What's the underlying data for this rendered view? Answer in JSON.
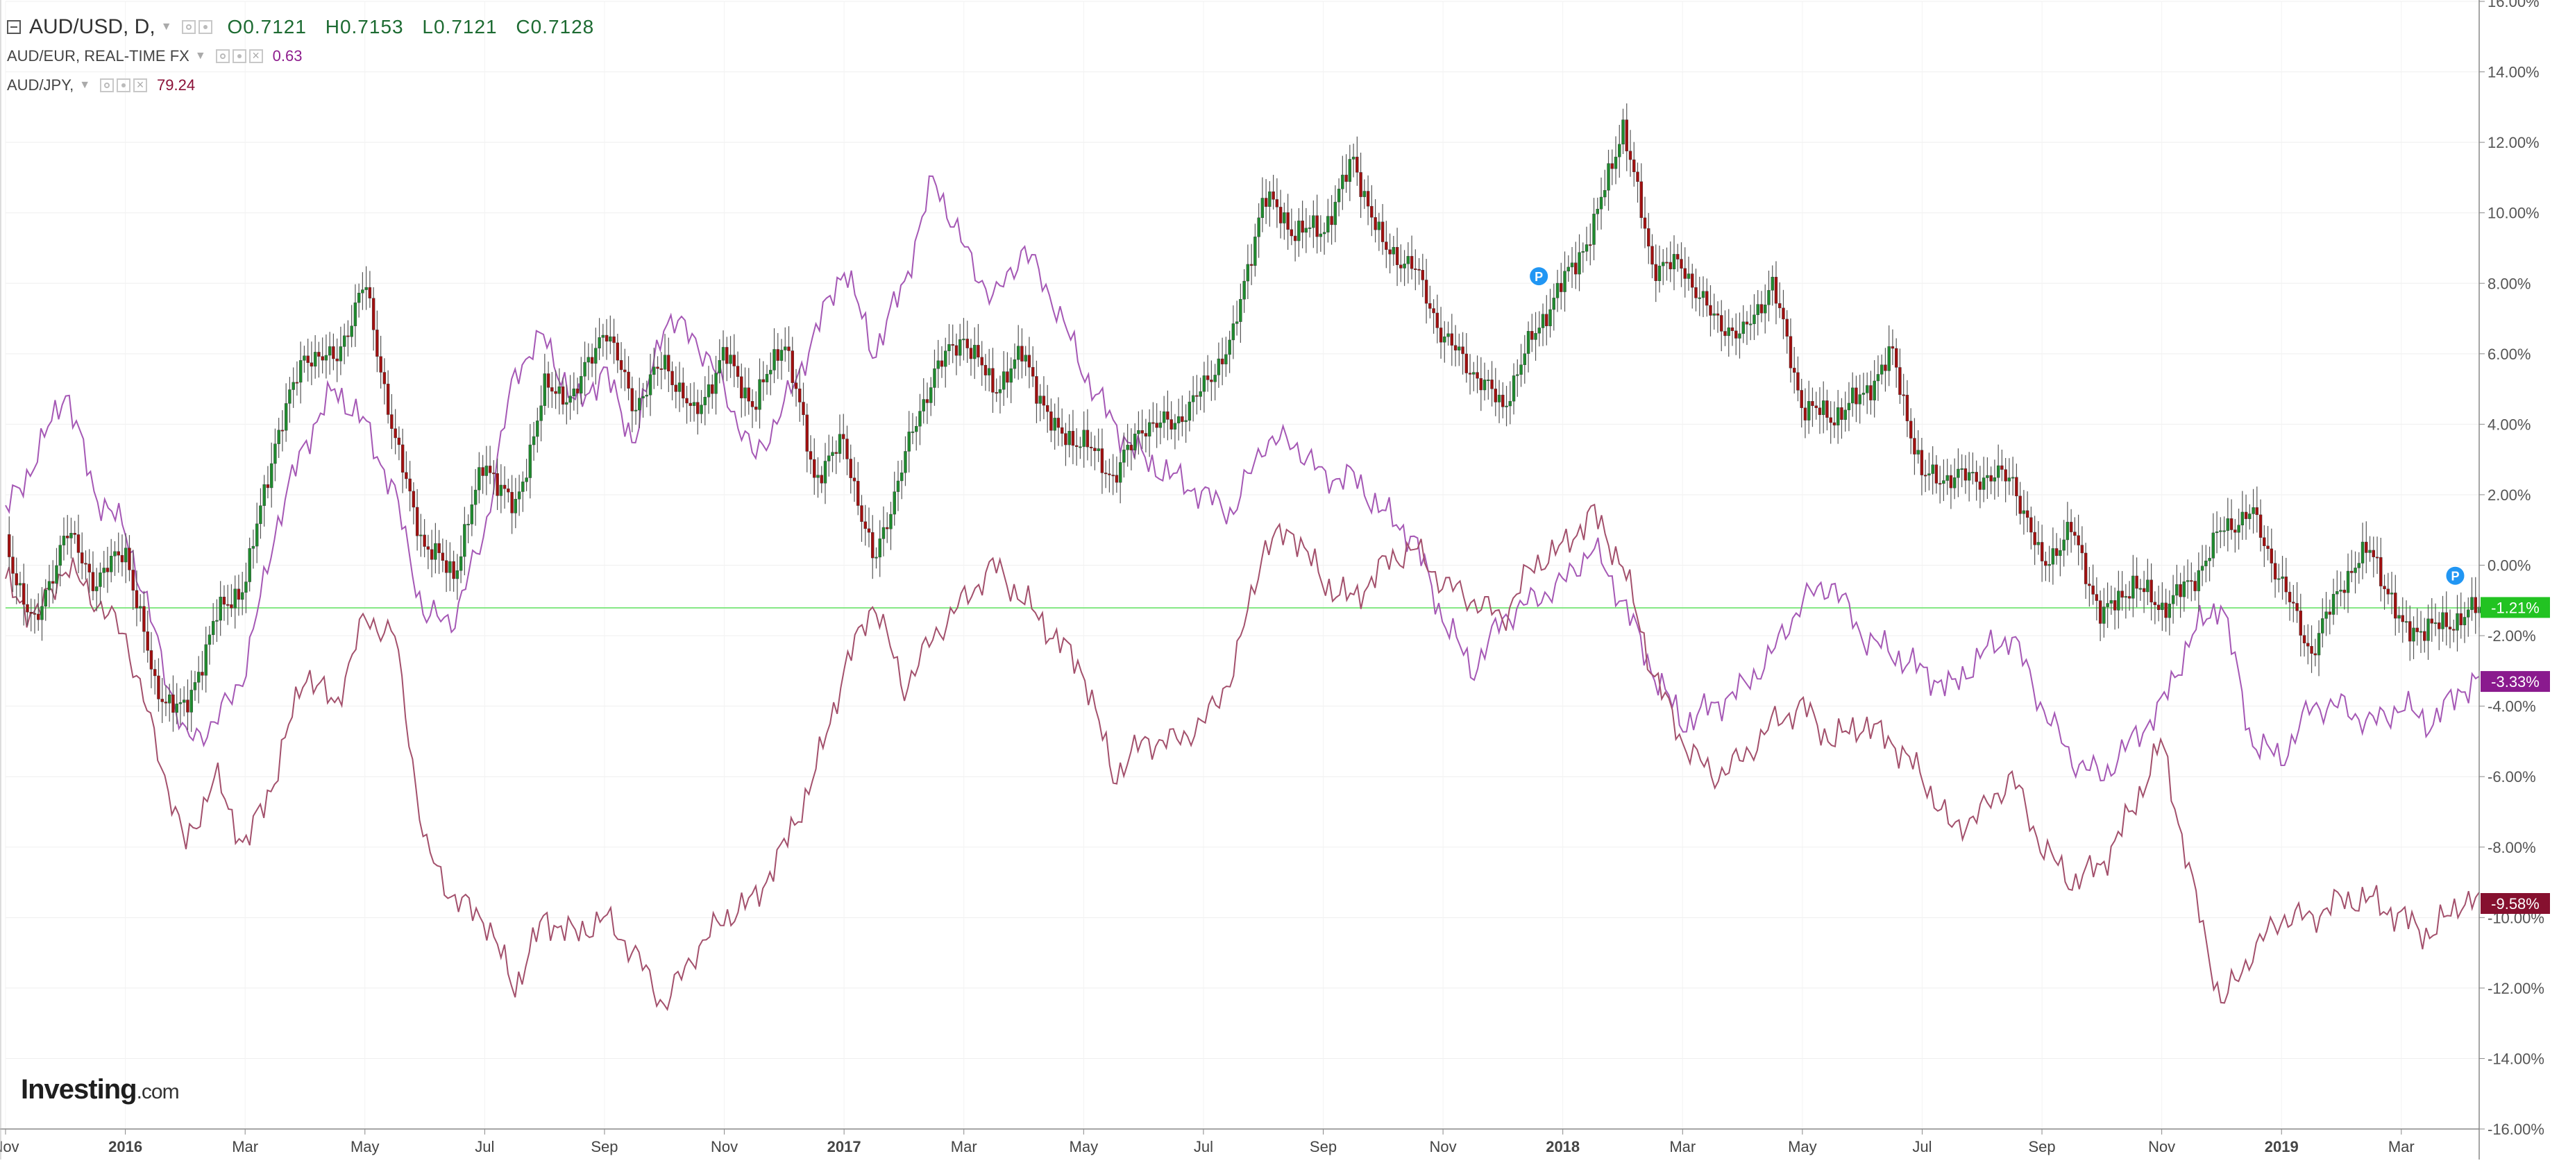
{
  "legend": {
    "main": {
      "name": "AUD/USD, D,",
      "open": "O0.7121",
      "high": "H0.7153",
      "low": "L0.7121",
      "close": "C0.7128"
    },
    "eur": {
      "name": "AUD/EUR, REAL-TIME FX",
      "value": "0.63"
    },
    "jpy": {
      "name": "AUD/JPY,",
      "value": "79.24"
    }
  },
  "logo": {
    "brand": "Investing",
    "suffix": ".com"
  },
  "colors": {
    "up": "#1f8a2e",
    "down": "#a01010",
    "wick": "#555555",
    "eur": "#a558b5",
    "jpy": "#a3506c",
    "zero_line": "#86e886",
    "usd_tag": "#22c322",
    "eur_tag": "#8a1a8e",
    "jpy_tag": "#86102f"
  },
  "chart_data": {
    "type": "line",
    "title": "",
    "xlabel": "",
    "ylabel": "",
    "x_ticks": [
      "Nov",
      "2016",
      "Mar",
      "May",
      "Jul",
      "Sep",
      "Nov",
      "2017",
      "Mar",
      "May",
      "Jul",
      "Sep",
      "Nov",
      "2018",
      "Mar",
      "May",
      "Jul",
      "Sep",
      "Nov",
      "2019",
      "Mar"
    ],
    "x_tick_bold": [
      false,
      true,
      false,
      false,
      false,
      false,
      false,
      true,
      false,
      false,
      false,
      false,
      false,
      true,
      false,
      false,
      false,
      false,
      false,
      true,
      false
    ],
    "y_ticks": [
      "16.00%",
      "14.00%",
      "12.00%",
      "10.00%",
      "8.00%",
      "6.00%",
      "4.00%",
      "2.00%",
      "0.00%",
      "-2.00%",
      "-4.00%",
      "-6.00%",
      "-8.00%",
      "-10.00%",
      "-12.00%",
      "-14.00%",
      "-16.00%"
    ],
    "ylim": [
      -16,
      16
    ],
    "x_unit": "months since Nov 2015",
    "xlim": [
      0,
      41.3
    ],
    "grid": true,
    "series": [
      {
        "name": "AUD/USD",
        "kind": "candlestick",
        "x": [
          0.0,
          0.5,
          1.0,
          1.5,
          2.0,
          2.5,
          3.0,
          3.5,
          4.0,
          4.5,
          5.0,
          5.5,
          6.0,
          6.5,
          7.0,
          7.5,
          8.0,
          8.5,
          9.0,
          9.5,
          10.0,
          10.5,
          11.0,
          11.5,
          12.0,
          12.5,
          13.0,
          13.5,
          14.0,
          14.5,
          15.0,
          15.5,
          16.0,
          16.5,
          17.0,
          17.5,
          18.0,
          18.5,
          19.0,
          19.5,
          20.0,
          20.5,
          21.0,
          21.5,
          22.0,
          22.5,
          23.0,
          23.5,
          24.0,
          24.5,
          25.0,
          25.5,
          26.0,
          26.5,
          27.0,
          27.5,
          28.0,
          28.5,
          29.0,
          29.5,
          30.0,
          30.5,
          31.0,
          31.5,
          32.0,
          32.5,
          33.0,
          33.5,
          34.0,
          34.5,
          35.0,
          35.5,
          36.0,
          36.5,
          37.0,
          37.5,
          38.0,
          38.5,
          39.0,
          39.5,
          40.0,
          40.5,
          41.0,
          41.3
        ],
        "values": [
          0.5,
          -1.8,
          1.0,
          -0.5,
          0.5,
          -3.5,
          -4.2,
          -1.5,
          -0.5,
          3.5,
          6.0,
          5.8,
          8.0,
          3.5,
          0.5,
          -0.2,
          3.0,
          1.5,
          5.0,
          4.8,
          6.8,
          4.5,
          5.8,
          4.2,
          6.0,
          4.5,
          6.5,
          2.5,
          3.5,
          0.0,
          3.0,
          5.5,
          6.5,
          5.0,
          6.0,
          3.8,
          3.5,
          2.5,
          4.0,
          4.0,
          5.0,
          6.5,
          10.5,
          9.5,
          9.5,
          11.5,
          9.0,
          8.5,
          6.5,
          5.5,
          4.5,
          6.5,
          8.0,
          9.5,
          12.5,
          8.5,
          8.5,
          7.0,
          6.5,
          8.0,
          4.5,
          4.2,
          4.8,
          6.0,
          2.5,
          2.5,
          2.5,
          2.5,
          0.0,
          1.0,
          -1.5,
          -0.5,
          -1.2,
          -0.5,
          1.0,
          1.5,
          -0.5,
          -2.5,
          -0.5,
          0.5,
          -1.8,
          -1.8,
          -1.5,
          -1.2
        ],
        "last_label": "-1.21%"
      },
      {
        "name": "AUD/EUR",
        "x": [
          0.0,
          0.5,
          1.0,
          1.5,
          2.0,
          2.5,
          3.0,
          3.5,
          4.0,
          4.5,
          5.0,
          5.5,
          6.0,
          6.5,
          7.0,
          7.5,
          8.0,
          8.5,
          9.0,
          9.5,
          10.0,
          10.5,
          11.0,
          11.5,
          12.0,
          12.5,
          13.0,
          13.5,
          14.0,
          14.5,
          15.0,
          15.5,
          16.0,
          16.5,
          17.0,
          17.5,
          18.0,
          18.5,
          19.0,
          19.5,
          20.0,
          20.5,
          21.0,
          21.5,
          22.0,
          22.5,
          23.0,
          23.5,
          24.0,
          24.5,
          25.0,
          25.5,
          26.0,
          26.5,
          27.0,
          27.5,
          28.0,
          28.5,
          29.0,
          29.5,
          30.0,
          30.5,
          31.0,
          31.5,
          32.0,
          32.5,
          33.0,
          33.5,
          34.0,
          34.5,
          35.0,
          35.5,
          36.0,
          36.5,
          37.0,
          37.5,
          38.0,
          38.5,
          39.0,
          39.5,
          40.0,
          40.5,
          41.0,
          41.3
        ],
        "values": [
          1.5,
          3.0,
          5.0,
          2.0,
          1.0,
          -2.0,
          -5.0,
          -4.5,
          -3.0,
          1.0,
          3.5,
          5.0,
          4.0,
          2.0,
          -1.5,
          -1.5,
          1.0,
          5.5,
          6.5,
          4.5,
          5.5,
          3.5,
          7.0,
          6.5,
          5.0,
          3.0,
          4.5,
          6.5,
          8.5,
          6.0,
          8.0,
          11.0,
          9.0,
          7.5,
          9.0,
          7.5,
          5.5,
          4.0,
          3.0,
          2.5,
          2.0,
          1.5,
          3.5,
          3.5,
          2.5,
          2.5,
          1.5,
          0.8,
          -1.5,
          -3.0,
          -1.5,
          -1.0,
          -0.5,
          0.5,
          -1.0,
          -3.0,
          -4.5,
          -4.0,
          -3.5,
          -2.5,
          -1.0,
          -0.5,
          -2.0,
          -2.5,
          -3.0,
          -3.5,
          -2.5,
          -2.0,
          -4.0,
          -5.5,
          -6.0,
          -5.0,
          -4.0,
          -2.0,
          -1.0,
          -5.0,
          -5.5,
          -4.0,
          -4.0,
          -4.5,
          -4.0,
          -4.5,
          -3.5,
          -3.3
        ],
        "last_label": "-3.33%"
      },
      {
        "name": "AUD/JPY",
        "x": [
          0.0,
          0.5,
          1.0,
          1.5,
          2.0,
          2.5,
          3.0,
          3.5,
          4.0,
          4.5,
          5.0,
          5.5,
          6.0,
          6.5,
          7.0,
          7.5,
          8.0,
          8.5,
          9.0,
          9.5,
          10.0,
          10.5,
          11.0,
          11.5,
          12.0,
          12.5,
          13.0,
          13.5,
          14.0,
          14.5,
          15.0,
          15.5,
          16.0,
          16.5,
          17.0,
          17.5,
          18.0,
          18.5,
          19.0,
          19.5,
          20.0,
          20.5,
          21.0,
          21.5,
          22.0,
          22.5,
          23.0,
          23.5,
          24.0,
          24.5,
          25.0,
          25.5,
          26.0,
          26.5,
          27.0,
          27.5,
          28.0,
          28.5,
          29.0,
          29.5,
          30.0,
          30.5,
          31.0,
          31.5,
          32.0,
          32.5,
          33.0,
          33.5,
          34.0,
          34.5,
          35.0,
          35.5,
          36.0,
          36.5,
          37.0,
          37.5,
          38.0,
          38.5,
          39.0,
          39.5,
          40.0,
          40.5,
          41.0,
          41.3
        ],
        "values": [
          -0.5,
          -1.5,
          0.0,
          -1.0,
          -2.0,
          -5.0,
          -8.0,
          -6.0,
          -8.0,
          -6.0,
          -3.0,
          -4.0,
          -1.5,
          -2.0,
          -8.0,
          -9.5,
          -10.0,
          -12.0,
          -10.0,
          -10.5,
          -10.0,
          -11.0,
          -12.5,
          -11.0,
          -10.0,
          -9.5,
          -8.0,
          -6.0,
          -3.0,
          -1.0,
          -3.5,
          -2.0,
          -1.0,
          0.0,
          -1.0,
          -2.0,
          -3.0,
          -6.0,
          -5.0,
          -5.0,
          -4.5,
          -3.0,
          0.5,
          1.0,
          -0.5,
          -1.0,
          0.0,
          0.5,
          -0.5,
          -1.0,
          -1.5,
          0.0,
          0.5,
          1.5,
          0.0,
          -3.0,
          -5.0,
          -6.0,
          -5.5,
          -4.5,
          -4.0,
          -5.0,
          -4.5,
          -5.0,
          -6.0,
          -7.5,
          -7.0,
          -6.0,
          -8.0,
          -9.0,
          -8.5,
          -7.0,
          -5.0,
          -9.0,
          -12.5,
          -11.0,
          -10.0,
          -10.0,
          -9.5,
          -9.5,
          -10.0,
          -10.5,
          -9.5,
          -9.6
        ],
        "last_label": "-9.58%"
      }
    ],
    "zero_reference_level": -1.21
  }
}
